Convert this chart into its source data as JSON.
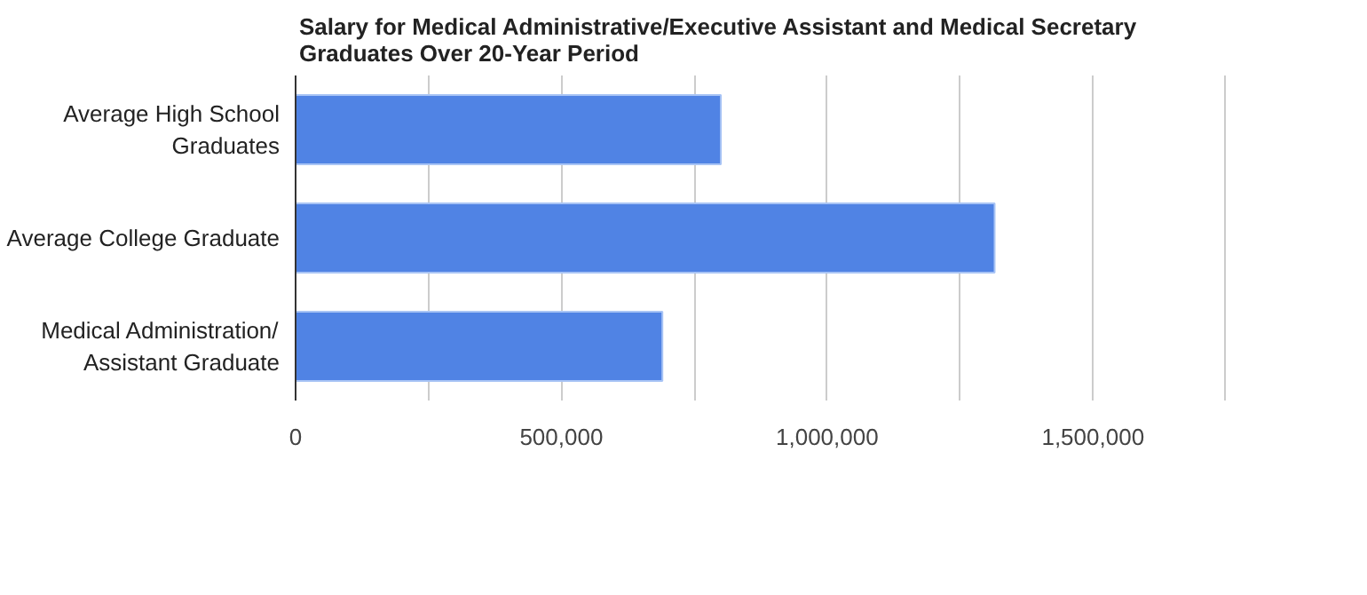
{
  "chart_data": {
    "type": "bar",
    "orientation": "horizontal",
    "title": "Salary for Medical Administrative/Executive Assistant and Medical Secretary Graduates Over 20-Year Period",
    "categories": [
      "Average High School Graduates",
      "Average College Graduate",
      "Medical Administration/Assistant Graduate"
    ],
    "values": [
      800000,
      1315000,
      690000
    ],
    "color": "#5083e4",
    "xlim": [
      0,
      1750000
    ],
    "xticks": [
      0,
      {
        "value": 250000,
        "label": null
      },
      {
        "value": 500000,
        "label": "500,000"
      },
      {
        "value": 750000,
        "label": null
      },
      {
        "value": 1000000,
        "label": "1,000,000"
      },
      {
        "value": 1250000,
        "label": null
      },
      {
        "value": 1500000,
        "label": "1,500,000"
      },
      {
        "value": 1750000,
        "label": null
      }
    ],
    "grid": "x"
  }
}
